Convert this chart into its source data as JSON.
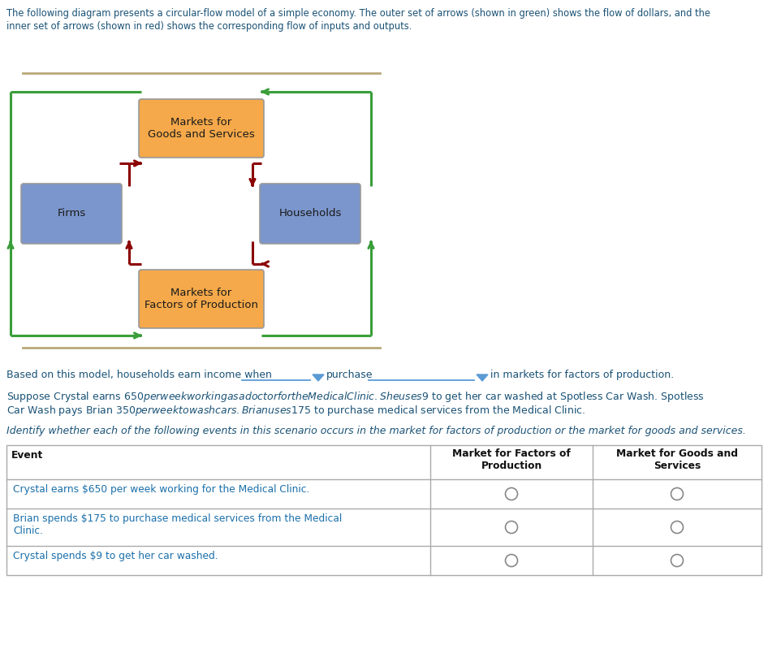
{
  "bg_color": "#ffffff",
  "text_color": "#1a5276",
  "green_color": "#3a9e3a",
  "red_color": "#8b0000",
  "orange_box_color": "#f5a94a",
  "blue_box_color": "#7b96cc",
  "separator_color": "#b8a878",
  "box_edge_color": "#999999",
  "title_line1": "The following diagram presents a circular-flow model of a simple economy. The outer set of arrows (shown in green) shows the flow of dollars, and the",
  "title_line2": "inner set of arrows (shown in red) shows the corresponding flow of inputs and outputs.",
  "label_mgs": "Markets for\nGoods and Services",
  "label_firms": "Firms",
  "label_households": "Households",
  "label_mfp": "Markets for\nFactors of Production",
  "income_text1": "Based on this model, households earn income when",
  "income_text2": "purchase",
  "income_text3": "in markets for factors of production.",
  "scenario1": "Suppose Crystal earns $650 per week working as a doctor for the Medical Clinic. She uses $9 to get her car washed at Spotless Car Wash. Spotless",
  "scenario2": "Car Wash pays Brian $350 per week to wash cars. Brian uses $175 to purchase medical services from the Medical Clinic.",
  "identify_text": "Identify whether each of the following events in this scenario occurs in the market for factors of production or the market for goods and services.",
  "col1_header": "Event",
  "col2_header": "Market for Factors of\nProduction",
  "col3_header": "Market for Goods and\nServices",
  "row1": "Crystal earns $650 per week working for the Medical Clinic.",
  "row2a": "Brian spends $175 to purchase medical services from the Medical",
  "row2b": "Clinic.",
  "row3": "Crystal spends $9 to get her car washed."
}
